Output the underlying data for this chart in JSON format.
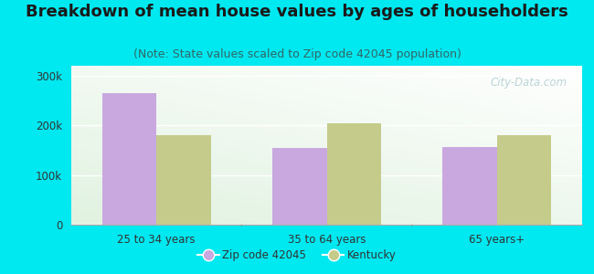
{
  "title": "Breakdown of mean house values by ages of householders",
  "subtitle": "(Note: State values scaled to Zip code 42045 population)",
  "categories": [
    "25 to 34 years",
    "35 to 64 years",
    "65 years+"
  ],
  "zip_values": [
    265000,
    155000,
    157000
  ],
  "ky_values": [
    180000,
    205000,
    180000
  ],
  "zip_color": "#c9a8e0",
  "ky_color": "#c5cb8a",
  "background_color": "#00e8f0",
  "yticks": [
    0,
    100000,
    200000,
    300000
  ],
  "ytick_labels": [
    "0",
    "100k",
    "200k",
    "300k"
  ],
  "ylim": [
    0,
    320000
  ],
  "legend_zip_label": "Zip code 42045",
  "legend_ky_label": "Kentucky",
  "title_fontsize": 13,
  "subtitle_fontsize": 9,
  "bar_width": 0.32,
  "watermark": "City-Data.com"
}
